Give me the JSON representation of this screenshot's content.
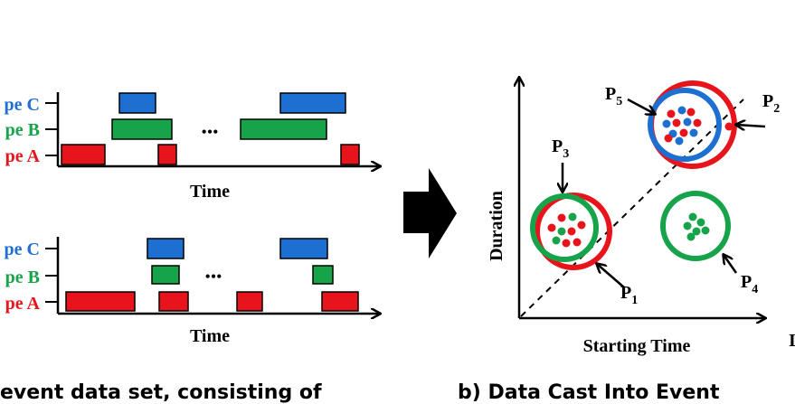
{
  "colors": {
    "type_a": "#e8141c",
    "type_b": "#16a34a",
    "type_c": "#1d6fd1",
    "axis": "#000000"
  },
  "timelines": [
    {
      "labels": [
        "pe C",
        "pe B",
        "pe A"
      ],
      "xlabel": "Time",
      "ellipsis": "•••"
    },
    {
      "labels": [
        "pe C",
        "pe B",
        "pe A"
      ],
      "xlabel": "Time",
      "ellipsis": "•••"
    }
  ],
  "arrow_icon": "right-arrow-icon",
  "scatter": {
    "ylabel": "Duration",
    "xlabel": "Starting Time",
    "points": {
      "p1": {
        "letter": "P",
        "sub": "1"
      },
      "p2": {
        "letter": "P",
        "sub": "2"
      },
      "p3": {
        "letter": "P",
        "sub": "3"
      },
      "p4": {
        "letter": "P",
        "sub": "4"
      },
      "p5": {
        "letter": "P",
        "sub": "5"
      }
    },
    "edge_mark": "I"
  },
  "captions": {
    "left": "event data set, consisting of",
    "right": "b) Data Cast Into Event"
  }
}
